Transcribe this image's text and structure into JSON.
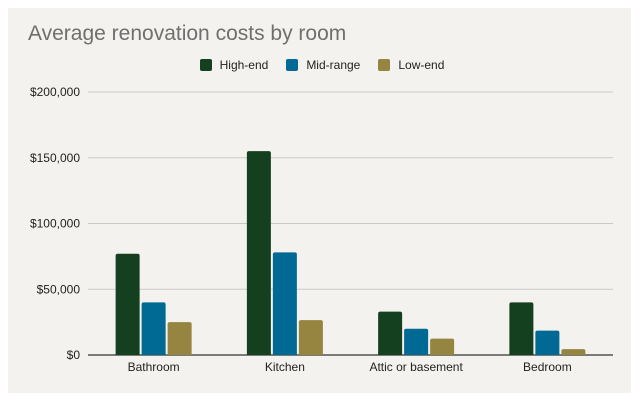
{
  "colors": {
    "background": "#f3f2ee",
    "grid": "#c9c9c5",
    "high_end": "#15401f",
    "mid_range": "#006994",
    "low_end": "#958540"
  },
  "chart_data": {
    "type": "bar",
    "title": "Average renovation costs by room",
    "xlabel": "",
    "ylabel": "",
    "categories": [
      "Bathroom",
      "Kitchen",
      "Attic or basement",
      "Bedroom"
    ],
    "series": [
      {
        "name": "High-end",
        "color": "#15401f",
        "values": [
          77000,
          155000,
          33000,
          40000
        ]
      },
      {
        "name": "Mid-range",
        "color": "#006994",
        "values": [
          40000,
          78000,
          20000,
          18500
        ]
      },
      {
        "name": "Low-end",
        "color": "#958540",
        "values": [
          25000,
          26500,
          12500,
          4500
        ]
      }
    ],
    "ylim": [
      0,
      200000
    ],
    "yticks": [
      0,
      50000,
      100000,
      150000,
      200000
    ],
    "ytick_labels": [
      "$0",
      "$50,000",
      "$100,000",
      "$150,000",
      "$200,000"
    ],
    "legend_position": "top-center",
    "grid": true
  }
}
